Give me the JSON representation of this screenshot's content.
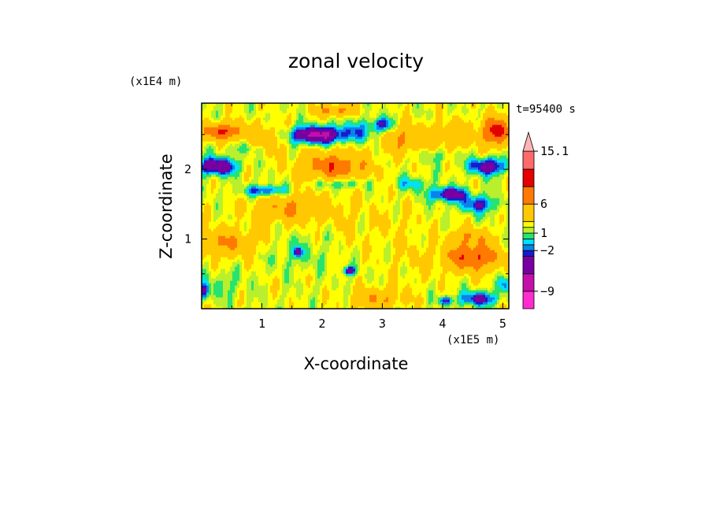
{
  "chart_data": {
    "type": "heatmap",
    "title": "zonal velocity",
    "xlabel": "X-coordinate",
    "ylabel": "Z-coordinate",
    "x_unit": "(x1E5 m)",
    "y_unit": "(x1E4 m)",
    "time_label": "t=95400 s",
    "xlim": [
      0,
      5.1
    ],
    "ylim": [
      0,
      2.95
    ],
    "x_ticks": [
      "1",
      "2",
      "3",
      "4",
      "5"
    ],
    "x_tick_values": [
      1,
      2,
      3,
      4,
      5
    ],
    "y_ticks": [
      "1",
      "2"
    ],
    "y_tick_values": [
      1,
      2
    ],
    "colorbar": {
      "levels": [
        -12,
        -9,
        -6,
        -3,
        -2,
        -1,
        0,
        1,
        2,
        3,
        6,
        9,
        12,
        15.1
      ],
      "tick_labels": [
        "15.1",
        "6",
        "1",
        "−2",
        "−9"
      ],
      "tick_values": [
        15.1,
        6,
        1,
        -2,
        -9
      ],
      "colors": [
        "#ff2ccf",
        "#c40faa",
        "#7800a0",
        "#1a1acc",
        "#0b82ea",
        "#00e0ff",
        "#27e36f",
        "#b9ef2d",
        "#ffff00",
        "#ffc800",
        "#ff7a00",
        "#e40000",
        "#ff6a6a",
        "#ffb5b5"
      ],
      "extend": "max"
    },
    "blobs": [
      {
        "x": 0.35,
        "z": 2.55,
        "sx": 0.35,
        "sz": 0.12,
        "v": 7
      },
      {
        "x": 0.25,
        "z": 2.05,
        "sx": 0.32,
        "sz": 0.12,
        "v": -8
      },
      {
        "x": 1.1,
        "z": 2.45,
        "sx": 0.3,
        "sz": 0.2,
        "v": 3
      },
      {
        "x": 1.9,
        "z": 2.5,
        "sx": 0.45,
        "sz": 0.12,
        "v": -9
      },
      {
        "x": 2.2,
        "z": 2.05,
        "sx": 0.55,
        "sz": 0.2,
        "v": 6
      },
      {
        "x": 2.6,
        "z": 2.55,
        "sx": 0.35,
        "sz": 0.15,
        "v": -3
      },
      {
        "x": 3.0,
        "z": 2.65,
        "sx": 0.18,
        "sz": 0.1,
        "v": -5
      },
      {
        "x": 2.2,
        "z": 2.85,
        "sx": 0.3,
        "sz": 0.08,
        "v": 5
      },
      {
        "x": 3.35,
        "z": 2.45,
        "sx": 0.35,
        "sz": 0.2,
        "v": 4
      },
      {
        "x": 4.15,
        "z": 2.5,
        "sx": 0.35,
        "sz": 0.2,
        "v": 3
      },
      {
        "x": 4.9,
        "z": 2.55,
        "sx": 0.25,
        "sz": 0.2,
        "v": 8
      },
      {
        "x": 4.75,
        "z": 2.05,
        "sx": 0.3,
        "sz": 0.12,
        "v": -7
      },
      {
        "x": 4.1,
        "z": 1.65,
        "sx": 0.3,
        "sz": 0.1,
        "v": -7
      },
      {
        "x": 3.5,
        "z": 1.8,
        "sx": 0.25,
        "sz": 0.1,
        "v": -3
      },
      {
        "x": 4.6,
        "z": 1.5,
        "sx": 0.3,
        "sz": 0.12,
        "v": -5
      },
      {
        "x": 1.05,
        "z": 1.7,
        "sx": 0.35,
        "sz": 0.08,
        "v": -5
      },
      {
        "x": 2.3,
        "z": 1.8,
        "sx": 0.4,
        "sz": 0.08,
        "v": -3
      },
      {
        "x": 1.5,
        "z": 1.45,
        "sx": 0.65,
        "sz": 0.2,
        "v": 4
      },
      {
        "x": 2.5,
        "z": 1.2,
        "sx": 0.35,
        "sz": 0.45,
        "v": 0.8
      },
      {
        "x": 3.2,
        "z": 1.25,
        "sx": 0.35,
        "sz": 0.35,
        "v": 0.8
      },
      {
        "x": 3.5,
        "z": 0.7,
        "sx": 0.4,
        "sz": 0.4,
        "v": 0.9
      },
      {
        "x": 1.6,
        "z": 0.8,
        "sx": 0.5,
        "sz": 0.25,
        "v": -1.3
      },
      {
        "x": 1.6,
        "z": 0.82,
        "sx": 0.06,
        "sz": 0.06,
        "v": -7
      },
      {
        "x": 2.45,
        "z": 0.55,
        "sx": 0.1,
        "sz": 0.06,
        "v": -7
      },
      {
        "x": 4.5,
        "z": 0.75,
        "sx": 0.45,
        "sz": 0.2,
        "v": 7
      },
      {
        "x": 4.45,
        "z": 1.05,
        "sx": 0.35,
        "sz": 0.12,
        "v": 3
      },
      {
        "x": 0.4,
        "z": 0.95,
        "sx": 0.55,
        "sz": 0.2,
        "v": 4
      },
      {
        "x": 0.35,
        "z": 0.35,
        "sx": 0.35,
        "sz": 0.2,
        "v": -1.5
      },
      {
        "x": 2.9,
        "z": 0.15,
        "sx": 0.4,
        "sz": 0.15,
        "v": 4
      },
      {
        "x": 4.6,
        "z": 0.15,
        "sx": 0.3,
        "sz": 0.1,
        "v": -6
      },
      {
        "x": 4.05,
        "z": 0.12,
        "sx": 0.12,
        "sz": 0.06,
        "v": -5
      },
      {
        "x": 5.05,
        "z": 0.35,
        "sx": 0.12,
        "sz": 0.12,
        "v": -4
      },
      {
        "x": 0.05,
        "z": 0.25,
        "sx": 0.08,
        "sz": 0.12,
        "v": -5
      },
      {
        "x": 3.9,
        "z": 2.2,
        "sx": 0.3,
        "sz": 0.1,
        "v": -1.5
      },
      {
        "x": 0.8,
        "z": 2.3,
        "sx": 0.4,
        "sz": 0.08,
        "v": -1.5
      }
    ]
  }
}
